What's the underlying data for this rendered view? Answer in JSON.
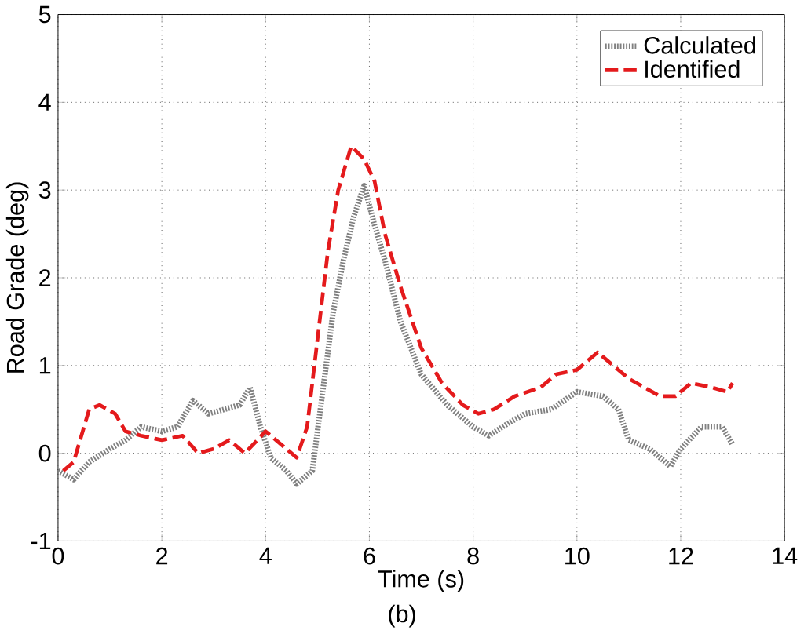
{
  "chart_data": {
    "type": "line",
    "xlabel": "Time (s)",
    "ylabel": "Road Grade (deg)",
    "xlim": [
      0,
      14
    ],
    "ylim": [
      -1,
      5
    ],
    "xticks": [
      0,
      2,
      4,
      6,
      8,
      10,
      12,
      14
    ],
    "yticks": [
      -1,
      0,
      1,
      2,
      3,
      4,
      5
    ],
    "grid": true,
    "legend": "top right",
    "annotations": [
      "(b)"
    ],
    "series": [
      {
        "name": "Calculated",
        "color": "#808080",
        "line_style": "dotted",
        "x": [
          0,
          0.3,
          0.6,
          1.0,
          1.3,
          1.6,
          2.0,
          2.3,
          2.6,
          2.9,
          3.2,
          3.5,
          3.7,
          3.9,
          4.1,
          4.4,
          4.6,
          4.9,
          5.1,
          5.3,
          5.5,
          5.7,
          5.9,
          6.1,
          6.3,
          6.6,
          7.0,
          7.5,
          8.0,
          8.3,
          8.7,
          9.0,
          9.5,
          10.0,
          10.5,
          10.8,
          11.0,
          11.4,
          11.8,
          12.0,
          12.4,
          12.8,
          13.0
        ],
        "values": [
          -0.2,
          -0.3,
          -0.1,
          0.05,
          0.15,
          0.3,
          0.25,
          0.3,
          0.6,
          0.45,
          0.5,
          0.55,
          0.75,
          0.3,
          -0.05,
          -0.2,
          -0.35,
          -0.2,
          0.7,
          1.6,
          2.2,
          2.7,
          3.05,
          2.6,
          2.2,
          1.5,
          0.9,
          0.55,
          0.3,
          0.2,
          0.35,
          0.45,
          0.5,
          0.7,
          0.65,
          0.5,
          0.15,
          0.05,
          -0.15,
          0.05,
          0.3,
          0.3,
          0.1
        ]
      },
      {
        "name": "Identified",
        "color": "#e41a1c",
        "line_style": "dashed",
        "x": [
          0.1,
          0.3,
          0.6,
          0.8,
          1.1,
          1.3,
          1.6,
          2.0,
          2.4,
          2.7,
          3.0,
          3.3,
          3.6,
          4.0,
          4.3,
          4.6,
          4.8,
          5.0,
          5.2,
          5.4,
          5.65,
          5.9,
          6.1,
          6.3,
          6.6,
          7.0,
          7.4,
          7.8,
          8.1,
          8.4,
          8.8,
          9.3,
          9.6,
          10.0,
          10.4,
          10.7,
          11.0,
          11.3,
          11.6,
          11.9,
          12.2,
          12.6,
          12.9,
          13.0
        ],
        "values": [
          -0.2,
          -0.1,
          0.5,
          0.55,
          0.45,
          0.25,
          0.2,
          0.15,
          0.2,
          0.0,
          0.05,
          0.15,
          0.0,
          0.25,
          0.1,
          -0.05,
          0.3,
          1.3,
          2.3,
          3.0,
          3.5,
          3.35,
          3.1,
          2.5,
          1.9,
          1.2,
          0.8,
          0.55,
          0.45,
          0.5,
          0.65,
          0.75,
          0.9,
          0.95,
          1.15,
          1.0,
          0.85,
          0.75,
          0.65,
          0.65,
          0.8,
          0.75,
          0.7,
          0.8
        ]
      }
    ]
  }
}
